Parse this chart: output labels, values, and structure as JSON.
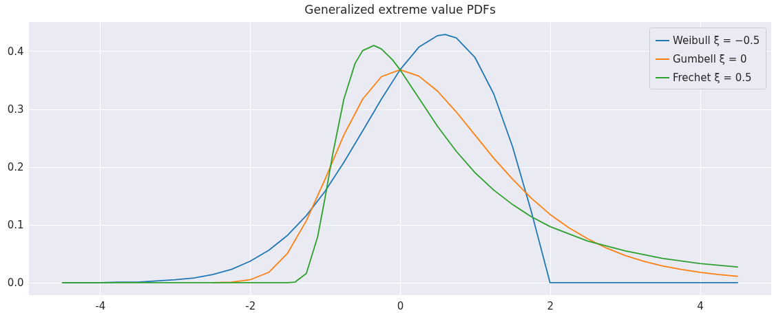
{
  "chart_data": {
    "type": "line",
    "title": "Generalized extreme value PDFs",
    "xlim": [
      -4.95,
      4.95
    ],
    "xticks": [
      -4,
      -2,
      0,
      2,
      4
    ],
    "ylim": [
      -0.0215,
      0.4505
    ],
    "yticks": [
      {
        "value": 0,
        "label": "0.0"
      },
      0.1,
      0.2,
      0.3,
      0.4
    ],
    "grid": true,
    "legend": "top right",
    "marker": "none",
    "line_style": "solid",
    "series": [
      {
        "name": "Weibull ξ = −0.5",
        "color": "#1f77b4",
        "x": [
          -4.5,
          -4.25,
          -4,
          -3.75,
          -3.5,
          -3.25,
          -3,
          -2.75,
          -2.5,
          -2.25,
          -2,
          -1.75,
          -1.5,
          -1.25,
          -1,
          -0.75,
          -0.5,
          -0.25,
          0,
          0.25,
          0.5,
          0.6,
          0.75,
          1,
          1.25,
          1.5,
          1.75,
          2,
          2.25,
          2.5,
          3,
          3.5,
          4,
          4.5
        ],
        "values": [
          0,
          0,
          0,
          0.001,
          0.001,
          0.003,
          0.005,
          0.008,
          0.014,
          0.023,
          0.037,
          0.056,
          0.082,
          0.116,
          0.158,
          0.208,
          0.262,
          0.317,
          0.368,
          0.407,
          0.427,
          0.429,
          0.423,
          0.389,
          0.326,
          0.235,
          0.123,
          0,
          0,
          0,
          0,
          0,
          0,
          0
        ]
      },
      {
        "name": "Gumbell ξ = 0",
        "color": "#ff7f0e",
        "x": [
          -2.5,
          -2.25,
          -2,
          -1.75,
          -1.5,
          -1.25,
          -1,
          -0.75,
          -0.5,
          -0.25,
          0,
          0.25,
          0.5,
          0.75,
          1,
          1.25,
          1.5,
          1.75,
          2,
          2.25,
          2.5,
          2.75,
          3,
          3.25,
          3.5,
          3.75,
          4,
          4.25,
          4.5
        ],
        "values": [
          0,
          0.001,
          0.005,
          0.018,
          0.051,
          0.107,
          0.179,
          0.255,
          0.317,
          0.356,
          0.368,
          0.357,
          0.331,
          0.295,
          0.255,
          0.215,
          0.179,
          0.146,
          0.118,
          0.095,
          0.076,
          0.06,
          0.047,
          0.037,
          0.029,
          0.023,
          0.018,
          0.014,
          0.011
        ]
      },
      {
        "name": "Frechet ξ = 0.5",
        "color": "#2ca02c",
        "x": [
          -4.5,
          -1.5,
          -1.4,
          -1.25,
          -1.1,
          -1,
          -0.9,
          -0.75,
          -0.6,
          -0.5,
          -0.35,
          -0.25,
          -0.1,
          0,
          0.25,
          0.5,
          0.75,
          1,
          1.25,
          1.5,
          1.75,
          2,
          2.5,
          3,
          3.5,
          4,
          4.5
        ],
        "values": [
          0,
          0,
          0.001,
          0.016,
          0.079,
          0.147,
          0.221,
          0.317,
          0.379,
          0.401,
          0.41,
          0.404,
          0.385,
          0.368,
          0.319,
          0.27,
          0.227,
          0.19,
          0.16,
          0.135,
          0.114,
          0.097,
          0.072,
          0.055,
          0.042,
          0.033,
          0.027
        ]
      }
    ]
  }
}
